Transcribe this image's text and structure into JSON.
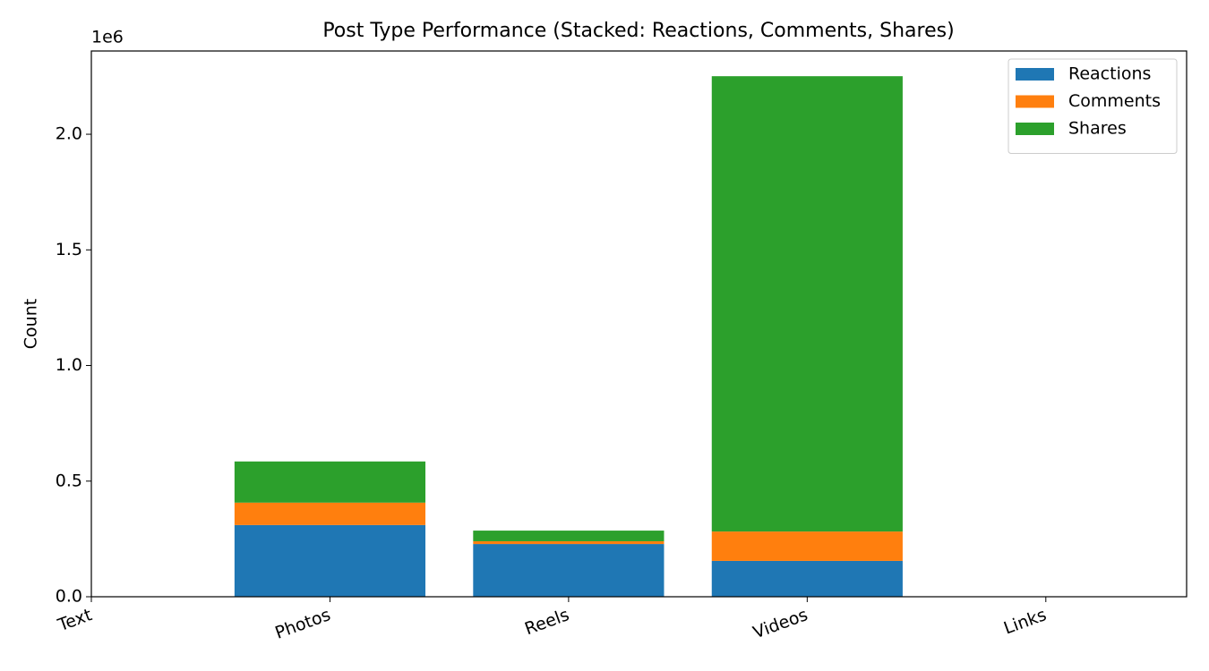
{
  "chart_data": {
    "type": "bar",
    "stacked": true,
    "title": "Post Type Performance (Stacked: Reactions, Comments, Shares)",
    "y_label": "Count",
    "y_offset_label": "1e6",
    "categories": [
      "Text",
      "Photos",
      "Reels",
      "Videos",
      "Links"
    ],
    "series": [
      {
        "name": "Reactions",
        "color": "#1f77b4",
        "values": [
          0,
          310000,
          228000,
          155000,
          0
        ]
      },
      {
        "name": "Comments",
        "color": "#ff7f0e",
        "values": [
          0,
          97000,
          12000,
          127000,
          0
        ]
      },
      {
        "name": "Shares",
        "color": "#2ca02c",
        "values": [
          0,
          178000,
          46000,
          1969000,
          0
        ]
      }
    ],
    "ylim": [
      0,
      2360000
    ],
    "yticks": [
      {
        "value": 0,
        "label": "0.0"
      },
      {
        "value": 500000,
        "label": "0.5"
      },
      {
        "value": 1000000,
        "label": "1.0"
      },
      {
        "value": 1500000,
        "label": "1.5"
      },
      {
        "value": 2000000,
        "label": "2.0"
      }
    ],
    "grid": false,
    "legend": "upper right"
  }
}
